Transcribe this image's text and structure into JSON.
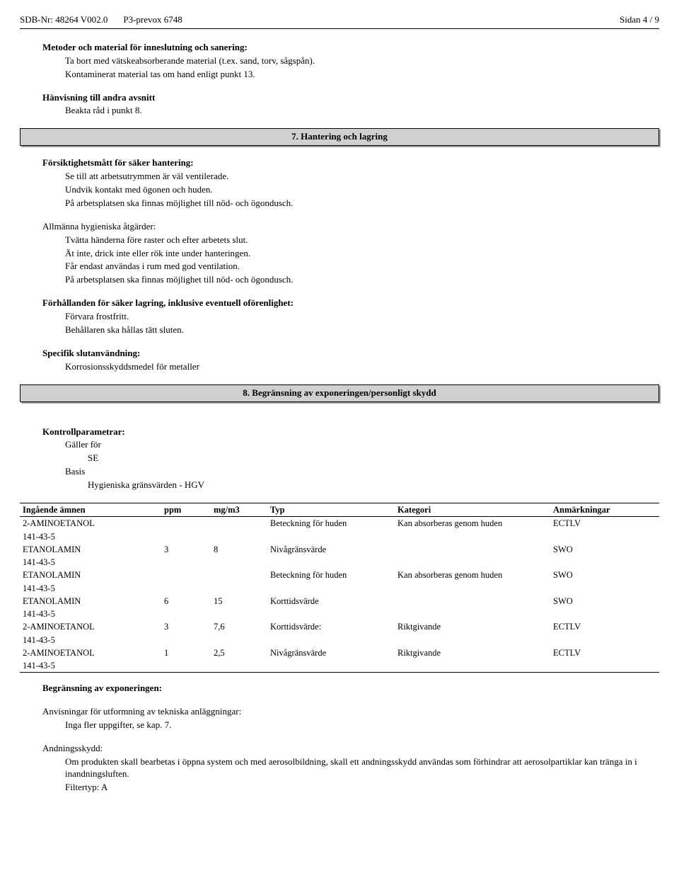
{
  "header": {
    "sdb": "SDB-Nr: 48264  V002.0",
    "product": "P3-prevox 6748",
    "page": "Sidan 4 / 9"
  },
  "s1": {
    "title": "Metoder och material för inneslutning och sanering:",
    "l1": "Ta bort med vätskeabsorberande material (t.ex. sand, torv, sågspån).",
    "l2": "Kontaminerat material tas om hand enligt punkt 13."
  },
  "s2": {
    "title": "Hänvisning till andra avsnitt",
    "l1": "Beakta råd i punkt 8."
  },
  "banner7": "7. Hantering och lagring",
  "s3": {
    "title": "Försiktighetsmått för säker hantering:",
    "l1": "Se till att arbetsutrymmen är väl ventilerade.",
    "l2": "Undvik kontakt med ögonen och huden.",
    "l3": "På arbetsplatsen ska finnas möjlighet till nöd- och ögondusch."
  },
  "s4": {
    "title": "Allmänna  hygieniska åtgärder:",
    "l1": "Tvätta händerna före raster och efter arbetets slut.",
    "l2": "Ät inte, drick inte eller rök inte under hanteringen.",
    "l3": "Får endast användas i rum med god ventilation.",
    "l4": "På arbetsplatsen ska finnas möjlighet till nöd- och ögondusch."
  },
  "s5": {
    "title": "Förhållanden för säker lagring, inklusive eventuell oförenlighet:",
    "l1": "Förvara frostfritt.",
    "l2": "Behållaren ska hållas tätt sluten."
  },
  "s6": {
    "title": "Specifik slutanvändning:",
    "l1": "Korrosionsskyddsmedel för metaller"
  },
  "banner8": "8. Begränsning av exponeringen/personligt skydd",
  "kp": {
    "title": "Kontrollparametrar:",
    "l1": "Gäller för",
    "l2": "SE",
    "l3": "Basis",
    "l4": "Hygieniska gränsvärden - HGV"
  },
  "table": {
    "headers": [
      "Ingående ämnen",
      "ppm",
      "mg/m3",
      "Typ",
      "Kategori",
      "Anmärkningar"
    ],
    "rows": [
      {
        "name": "2-AMINOETANOL",
        "cas": "141-43-5",
        "ppm": "",
        "mg": "",
        "typ": "Beteckning för huden",
        "kat": "Kan absorberas genom huden",
        "anm": "ECTLV"
      },
      {
        "name": "ETANOLAMIN",
        "cas": "141-43-5",
        "ppm": "3",
        "mg": "8",
        "typ": "Nivågränsvärde",
        "kat": "",
        "anm": "SWO"
      },
      {
        "name": "ETANOLAMIN",
        "cas": "141-43-5",
        "ppm": "",
        "mg": "",
        "typ": "Beteckning för huden",
        "kat": "Kan absorberas genom huden",
        "anm": "SWO"
      },
      {
        "name": "ETANOLAMIN",
        "cas": "141-43-5",
        "ppm": "6",
        "mg": "15",
        "typ": "Korttidsvärde",
        "kat": "",
        "anm": "SWO"
      },
      {
        "name": "2-AMINOETANOL",
        "cas": "141-43-5",
        "ppm": "3",
        "mg": "7,6",
        "typ": "Korttidsvärde:",
        "kat": "Riktgivande",
        "anm": "ECTLV"
      },
      {
        "name": "2-AMINOETANOL",
        "cas": "141-43-5",
        "ppm": "1",
        "mg": "2,5",
        "typ": "Nivågränsvärde",
        "kat": "Riktgivande",
        "anm": "ECTLV"
      }
    ]
  },
  "s7": {
    "title": "Begränsning av exponeringen:"
  },
  "s8": {
    "title": "Anvisningar för utformning av tekniska anläggningar:",
    "l1": "Inga fler uppgifter, se kap. 7."
  },
  "s9": {
    "title": "Andningsskydd:",
    "l1": "Om produkten skall bearbetas i öppna system och med aerosolbildning, skall ett andningsskydd användas som förhindrar att aerosolpartiklar kan tränga in i inandningsluften.",
    "l2": "Filtertyp: A"
  }
}
